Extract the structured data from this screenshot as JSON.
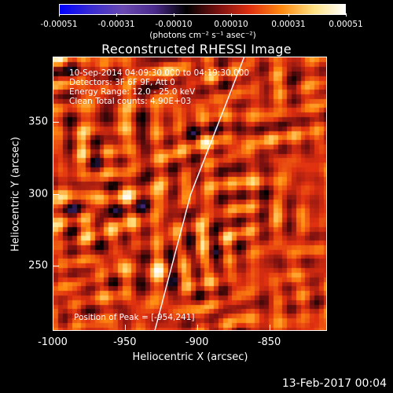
{
  "colorbar": {
    "colors": [
      "#0000ff",
      "#3a2bd0",
      "#6a4ab0",
      "#4a2a8a",
      "#000000",
      "#7a1010",
      "#e03010",
      "#ff8a10",
      "#ffe080",
      "#ffffff"
    ],
    "tick_labels": [
      "-0.00051",
      "-0.00031",
      "-0.00010",
      "0.00010",
      "0.00031",
      "0.00051"
    ],
    "unit": "(photons cm⁻² s⁻¹ asec⁻²)"
  },
  "title": "Reconstructed RHESSI Image",
  "annotations": {
    "line1": "10-Sep-2014 04:09:30.000 to 04:19:30.000",
    "line2": "Detectors: 3F 6F 9F, Att 0",
    "line3": "Energy Range: 12.0 - 25.0 keV",
    "line4": "Clean    Total counts: 4.90E+03",
    "peak": "Position of Peak = [-954,241]"
  },
  "chart_data": {
    "type": "heatmap",
    "title": "Reconstructed RHESSI Image",
    "xlabel": "Heliocentric X (arcsec)",
    "ylabel": "Heliocentric Y (arcsec)",
    "xlim": [
      -1000,
      -810
    ],
    "ylim": [
      205,
      395
    ],
    "x_ticks": [
      -1000,
      -950,
      -900,
      -850
    ],
    "x_tick_labels": [
      "-1000",
      "-950",
      "-900",
      "-850"
    ],
    "y_ticks": [
      250,
      300,
      350
    ],
    "y_tick_labels": [
      "250",
      "300",
      "350"
    ],
    "value_range": [
      -0.00051,
      0.00051
    ],
    "limb_line": [
      [
        -930,
        205
      ],
      [
        -905,
        300
      ],
      [
        -868,
        395
      ]
    ]
  },
  "timestamp": "13-Feb-2017 00:04"
}
